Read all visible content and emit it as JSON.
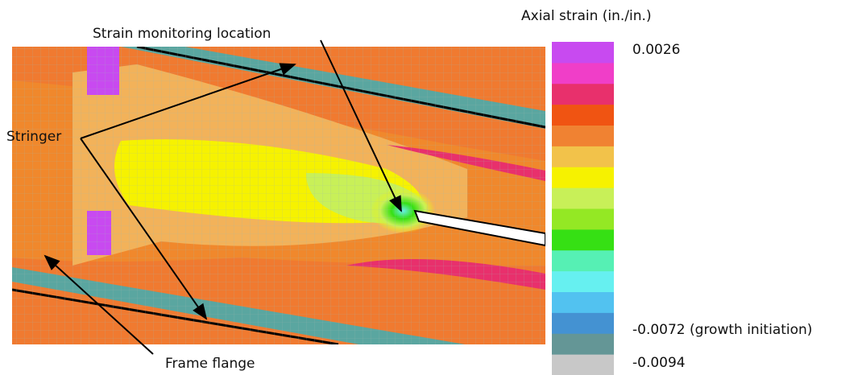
{
  "figure": {
    "annotations": {
      "monitoring": "Strain monitoring location",
      "stringer": "Stringer",
      "frame": "Frame flange"
    },
    "legend": {
      "title": "Axial strain (in./in.)",
      "top_label": "0.0026",
      "initiation_label": "-0.0072 (growth initiation)",
      "bottom_label": "-0.0094",
      "colors": [
        "#c84af0",
        "#f03ec8",
        "#e8306c",
        "#f05412",
        "#f08232",
        "#f2c24a",
        "#f6f200",
        "#c8f058",
        "#94e824",
        "#36e014",
        "#56f0b4",
        "#66f0f0",
        "#52c2f0",
        "#4492d2",
        "#649696",
        "#c8c8c8"
      ]
    }
  }
}
